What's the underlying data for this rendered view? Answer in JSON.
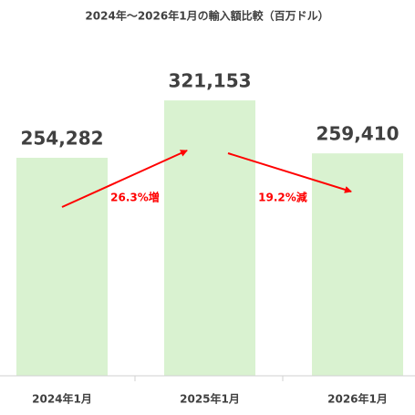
{
  "chart_data": {
    "type": "bar",
    "title": "2024年～2026年1月の輸入額比較（百万ドル）",
    "categories": [
      "2024年1月",
      "2025年1月",
      "2026年1月"
    ],
    "values": [
      254282,
      321153,
      259410
    ],
    "value_labels": [
      "254,282",
      "321,153",
      "259,410"
    ],
    "color": "#d9f2d0",
    "ylim": [
      0,
      350000
    ],
    "annotations": [
      {
        "text": "26.3%増",
        "color": "#ff0000"
      },
      {
        "text": "19.2%減",
        "color": "#ff0000"
      }
    ]
  }
}
